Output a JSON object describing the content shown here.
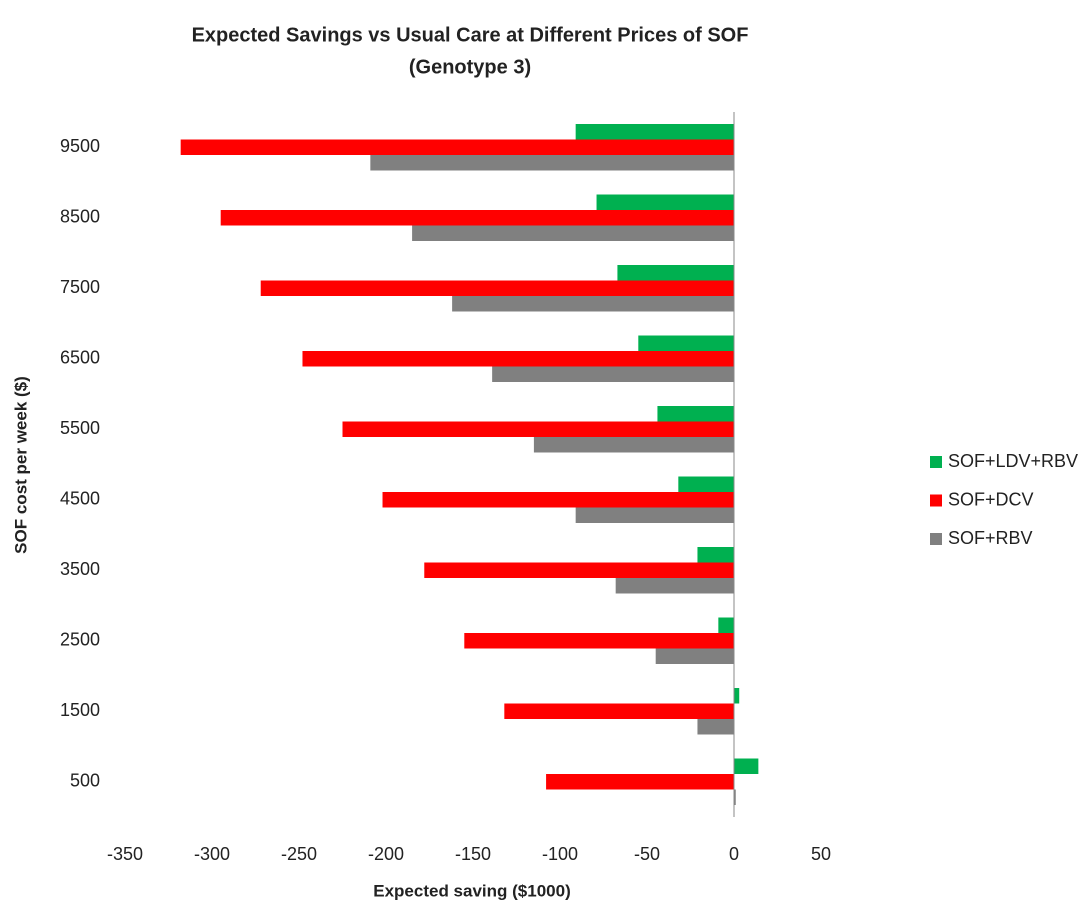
{
  "chart_data": {
    "type": "barh",
    "title": "Expected Savings vs Usual Care at Different Prices of SOF",
    "subtitle": "(Genotype 3)",
    "x_label": "Expected saving ($1000)",
    "y_label": "SOF cost per week ($)",
    "categories": [
      "500",
      "1500",
      "2500",
      "3500",
      "4500",
      "5500",
      "6500",
      "7500",
      "8500",
      "9500"
    ],
    "series": [
      {
        "name": "SOF+LDV+RBV",
        "color": "#00b050",
        "values": [
          14,
          3,
          -9,
          -21,
          -32,
          -44,
          -55,
          -67,
          -79,
          -91
        ]
      },
      {
        "name": "SOF+DCV",
        "color": "#ff0000",
        "values": [
          -108,
          -132,
          -155,
          -178,
          -202,
          -225,
          -248,
          -272,
          -295,
          -318
        ]
      },
      {
        "name": "SOF+RBV",
        "color": "#808080",
        "values": [
          1,
          -21,
          -45,
          -68,
          -91,
          -115,
          -139,
          -162,
          -185,
          -209
        ]
      }
    ],
    "xlim": [
      -350,
      50
    ],
    "xticks": [
      -350,
      -300,
      -250,
      -200,
      -150,
      -100,
      -50,
      0,
      50
    ],
    "grid": false,
    "legend": "right"
  }
}
